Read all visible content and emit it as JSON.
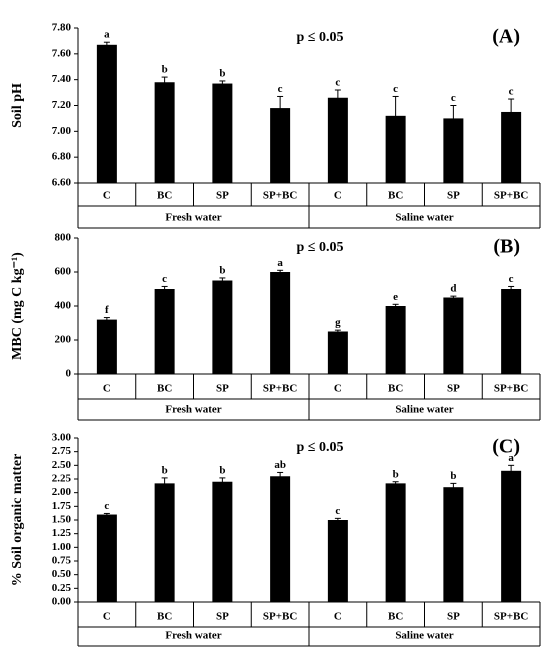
{
  "chart_data": [
    {
      "type": "bar",
      "panel_label": "(A)",
      "annotation": "p ≤ 0.05",
      "ylabel": "Soil pH",
      "categories": [
        "C",
        "BC",
        "SP",
        "SP+BC",
        "C",
        "BC",
        "SP",
        "SP+BC"
      ],
      "groups": [
        "Fresh water",
        "Saline water"
      ],
      "values": [
        7.67,
        7.38,
        7.37,
        7.18,
        7.26,
        7.12,
        7.1,
        7.15
      ],
      "errors": [
        0.02,
        0.04,
        0.02,
        0.09,
        0.06,
        0.15,
        0.1,
        0.1
      ],
      "letters": [
        "a",
        "b",
        "b",
        "c",
        "c",
        "c",
        "c",
        "c"
      ],
      "color": "#000000",
      "ylim": [
        6.6,
        7.8
      ],
      "yticks": [
        {
          "value": 6.6,
          "label": "6.60"
        },
        {
          "value": 6.8,
          "label": "6.80"
        },
        {
          "value": 7.0,
          "label": "7.00"
        },
        {
          "value": 7.2,
          "label": "7.20"
        },
        {
          "value": 7.4,
          "label": "7.40"
        },
        {
          "value": 7.6,
          "label": "7.60"
        },
        {
          "value": 7.8,
          "label": "7.80"
        }
      ]
    },
    {
      "type": "bar",
      "panel_label": "(B)",
      "annotation": "p ≤ 0.05",
      "ylabel": "MBC (mg C kg⁻¹)",
      "categories": [
        "C",
        "BC",
        "SP",
        "SP+BC",
        "C",
        "BC",
        "SP",
        "SP+BC"
      ],
      "groups": [
        "Fresh water",
        "Saline water"
      ],
      "values": [
        320,
        500,
        550,
        600,
        250,
        400,
        450,
        500
      ],
      "errors": [
        12,
        15,
        15,
        10,
        8,
        10,
        8,
        15
      ],
      "letters": [
        "f",
        "c",
        "b",
        "a",
        "g",
        "e",
        "d",
        "c"
      ],
      "color": "#000000",
      "ylim": [
        0,
        800
      ],
      "yticks": [
        0,
        200,
        400,
        600,
        800
      ]
    },
    {
      "type": "bar",
      "panel_label": "(C)",
      "annotation": "p ≤ 0.05",
      "ylabel": "% Soil organic matter",
      "categories": [
        "C",
        "BC",
        "SP",
        "SP+BC",
        "C",
        "BC",
        "SP",
        "SP+BC"
      ],
      "groups": [
        "Fresh water",
        "Saline water"
      ],
      "values": [
        1.6,
        2.17,
        2.2,
        2.3,
        1.5,
        2.17,
        2.1,
        2.4
      ],
      "errors": [
        0.02,
        0.1,
        0.07,
        0.07,
        0.03,
        0.03,
        0.07,
        0.1
      ],
      "letters": [
        "c",
        "b",
        "b",
        "ab",
        "c",
        "b",
        "b",
        "a"
      ],
      "color": "#000000",
      "ylim": [
        0,
        3.0
      ],
      "yticks": [
        {
          "value": 0,
          "label": "0.00"
        },
        {
          "value": 0.25,
          "label": "0.25"
        },
        {
          "value": 0.5,
          "label": "0.50"
        },
        {
          "value": 0.75,
          "label": "0.75"
        },
        {
          "value": 1.0,
          "label": "1.00"
        },
        {
          "value": 1.25,
          "label": "1.25"
        },
        {
          "value": 1.5,
          "label": "1.50"
        },
        {
          "value": 1.75,
          "label": "1.75"
        },
        {
          "value": 2.0,
          "label": "2.00"
        },
        {
          "value": 2.25,
          "label": "2.25"
        },
        {
          "value": 2.5,
          "label": "2.50"
        },
        {
          "value": 2.75,
          "label": "2.75"
        },
        {
          "value": 3.0,
          "label": "3.00"
        }
      ]
    }
  ]
}
